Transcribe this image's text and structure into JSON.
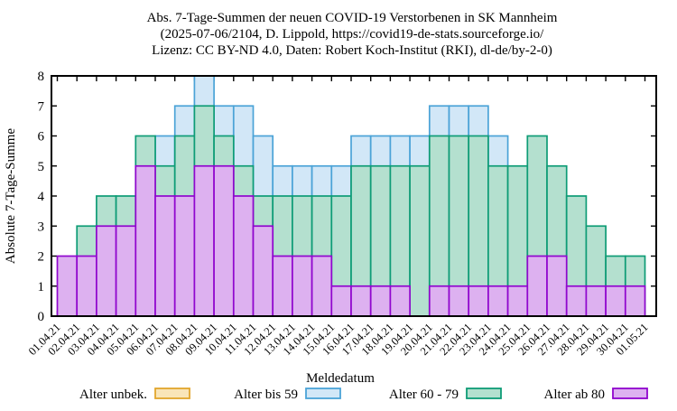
{
  "title_lines": [
    "Abs. 7-Tage-Summen der neuen COVID-19 Verstorbenen in SK Mannheim",
    "(2025-07-06/2104, D. Lippold, https://covid19-de-stats.sourceforge.io/",
    "Lizenz: CC BY-ND 4.0, Daten: Robert Koch-Institut (RKI), dl-de/by-2-0)"
  ],
  "y_axis": {
    "label": "Absolute 7-Tage-Summe",
    "min": 0,
    "max": 8,
    "tick_step": 1
  },
  "x_axis": {
    "label": "Meldedatum",
    "tick_labels": [
      "01.04.21",
      "02.04.21",
      "03.04.21",
      "04.04.21",
      "05.04.21",
      "06.04.21",
      "07.04.21",
      "08.04.21",
      "09.04.21",
      "10.04.21",
      "11.04.21",
      "12.04.21",
      "13.04.21",
      "14.04.21",
      "15.04.21",
      "16.04.21",
      "17.04.21",
      "18.04.21",
      "19.04.21",
      "20.04.21",
      "21.04.21",
      "22.04.21",
      "23.04.21",
      "24.04.21",
      "25.04.21",
      "26.04.21",
      "27.04.21",
      "28.04.21",
      "29.04.21",
      "30.04.21",
      "01.05.21"
    ]
  },
  "legend": [
    {
      "label": "Alter unbek.",
      "fill": "#f9e5b8",
      "border": "#e2a62c"
    },
    {
      "label": "Alter bis 59",
      "fill": "#d2e7f7",
      "border": "#4ba3d7"
    },
    {
      "label": "Alter 60 - 79",
      "fill": "#b4e0cf",
      "border": "#0e9c76"
    },
    {
      "label": "Alter ab 80",
      "fill": "#ddb1f0",
      "border": "#9006ce"
    }
  ],
  "chart_data": {
    "type": "bar",
    "mode": "overlay",
    "title": "Abs. 7-Tage-Summen der neuen COVID-19 Verstorbenen in SK Mannheim",
    "xlabel": "Meldedatum",
    "ylabel": "Absolute 7-Tage-Summe",
    "ylim": [
      0,
      8
    ],
    "grid": false,
    "legend_position": "bottom",
    "categories": [
      "01.04.21",
      "02.04.21",
      "03.04.21",
      "04.04.21",
      "05.04.21",
      "06.04.21",
      "07.04.21",
      "08.04.21",
      "09.04.21",
      "10.04.21",
      "11.04.21",
      "12.04.21",
      "13.04.21",
      "14.04.21",
      "15.04.21",
      "16.04.21",
      "17.04.21",
      "18.04.21",
      "19.04.21",
      "20.04.21",
      "21.04.21",
      "22.04.21",
      "23.04.21",
      "24.04.21",
      "25.04.21",
      "26.04.21",
      "27.04.21",
      "28.04.21",
      "29.04.21",
      "30.04.21"
    ],
    "series": [
      {
        "name": "Alter unbek.",
        "fill": "#f9e5b8",
        "border": "#e2a62c",
        "values": [
          0,
          0,
          0,
          0,
          0,
          0,
          0,
          0,
          0,
          0,
          0,
          0,
          0,
          0,
          0,
          0,
          0,
          0,
          0,
          0,
          0,
          0,
          0,
          0,
          0,
          0,
          0,
          0,
          0,
          0
        ]
      },
      {
        "name": "Alter bis 59",
        "fill": "#d2e7f7",
        "border": "#4ba3d7",
        "values": [
          null,
          null,
          null,
          null,
          null,
          6,
          7,
          8,
          7,
          7,
          6,
          5,
          5,
          5,
          5,
          6,
          6,
          6,
          6,
          7,
          7,
          7,
          6,
          null,
          null,
          null,
          null,
          null,
          null,
          null
        ]
      },
      {
        "name": "Alter 60 - 79",
        "fill": "#b4e0cf",
        "border": "#0e9c76",
        "values": [
          null,
          3,
          4,
          4,
          6,
          5,
          6,
          7,
          6,
          5,
          4,
          4,
          4,
          4,
          4,
          5,
          5,
          5,
          5,
          6,
          6,
          6,
          5,
          5,
          6,
          5,
          4,
          3,
          2,
          2
        ]
      },
      {
        "name": "Alter ab 80",
        "fill": "#ddb1f0",
        "border": "#9006ce",
        "values": [
          2,
          2,
          3,
          3,
          5,
          4,
          4,
          5,
          5,
          4,
          3,
          2,
          2,
          2,
          1,
          1,
          1,
          1,
          0,
          1,
          1,
          1,
          1,
          1,
          2,
          2,
          1,
          1,
          1,
          1
        ]
      }
    ]
  }
}
